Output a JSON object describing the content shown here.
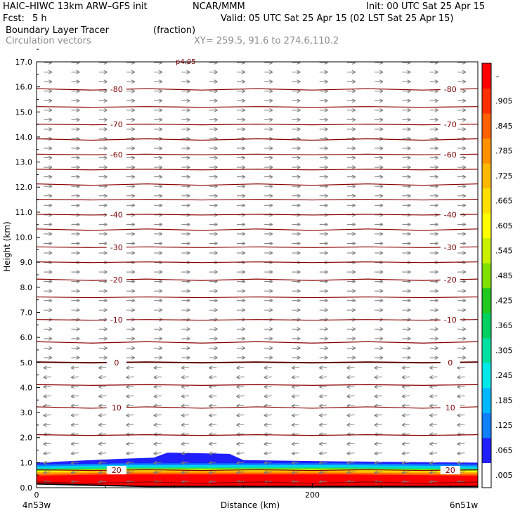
{
  "header": {
    "model": "HAIC–HIWC 13km ARW–GFS init",
    "org": "NCAR/MMM",
    "init": "Init: 00 UTC Sat 25 Apr 15",
    "fcst_label": "Fcst:",
    "fcst_value": "5 h",
    "valid": "Valid: 05 UTC Sat 25 Apr 15 (02 LST Sat 25 Apr 15)",
    "field": "Boundary Layer Tracer",
    "units": "(fraction)",
    "vectors": "Circulation vectors",
    "xy": "XY= 259.5, 91.6 to 274.6,110.2",
    "top_label": "p4.05"
  },
  "chart_data": {
    "type": "contour",
    "title": "Boundary Layer Tracer",
    "ylabel": "Height (km)",
    "xlabel": "Distance (km)",
    "x_ticks": [
      "0",
      "200"
    ],
    "x_end_labels": [
      "4n53w",
      "6n51w"
    ],
    "xlim": [
      0,
      320
    ],
    "ylim": [
      0,
      17
    ],
    "y_ticks": [
      "0.0",
      "1.0",
      "2.0",
      "3.0",
      "4.0",
      "5.0",
      "6.0",
      "7.0",
      "8.0",
      "9.0",
      "10.0",
      "11.0",
      "12.0",
      "13.0",
      "14.0",
      "15.0",
      "16.0",
      "17.0"
    ],
    "colorbar": {
      "labels": [
        ".005",
        ".065",
        ".125",
        ".185",
        ".245",
        ".305",
        ".365",
        ".425",
        ".485",
        ".545",
        ".605",
        ".665",
        ".725",
        ".785",
        ".845",
        ".905",
        "–"
      ],
      "colors": [
        "#ffffff",
        "#2020ff",
        "#1080ff",
        "#00b8ff",
        "#00e8e8",
        "#00e0a0",
        "#00d060",
        "#20c820",
        "#80e000",
        "#c8f000",
        "#ffff00",
        "#ffe000",
        "#ffb800",
        "#ff9000",
        "#ff6000",
        "#ff3000",
        "#ff0000"
      ]
    },
    "temperature_contours": [
      {
        "height": 0.2,
        "label": ""
      },
      {
        "height": 0.7,
        "label": "20"
      },
      {
        "height": 2.1,
        "label": ""
      },
      {
        "height": 3.2,
        "label": "10"
      },
      {
        "height": 4.1,
        "label": ""
      },
      {
        "height": 5.0,
        "label": "0"
      },
      {
        "height": 5.8,
        "label": ""
      },
      {
        "height": 6.7,
        "label": "-10"
      },
      {
        "height": 7.6,
        "label": ""
      },
      {
        "height": 8.3,
        "label": "-20"
      },
      {
        "height": 9.0,
        "label": ""
      },
      {
        "height": 9.6,
        "label": "-30"
      },
      {
        "height": 10.3,
        "label": ""
      },
      {
        "height": 10.9,
        "label": "-40"
      },
      {
        "height": 11.5,
        "label": ""
      },
      {
        "height": 12.1,
        "label": ""
      },
      {
        "height": 12.7,
        "label": ""
      },
      {
        "height": 13.3,
        "label": "-60"
      },
      {
        "height": 13.9,
        "label": ""
      },
      {
        "height": 14.5,
        "label": "-70"
      },
      {
        "height": 15.2,
        "label": ""
      },
      {
        "height": 15.9,
        "label": "-80"
      }
    ],
    "tracer_top_km": [
      {
        "x": 0,
        "h": 1.0
      },
      {
        "x": 60,
        "h": 1.15
      },
      {
        "x": 85,
        "h": 1.2
      },
      {
        "x": 95,
        "h": 1.4
      },
      {
        "x": 140,
        "h": 1.35
      },
      {
        "x": 150,
        "h": 1.1
      },
      {
        "x": 220,
        "h": 1.05
      },
      {
        "x": 320,
        "h": 1.0
      }
    ],
    "vectors": {
      "rows_below_km": 5.0,
      "direction_low": "left",
      "direction_high": "right"
    }
  }
}
